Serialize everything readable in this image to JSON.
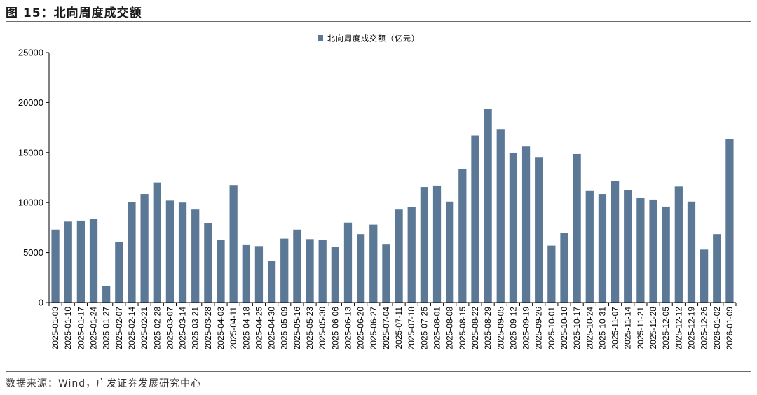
{
  "figure": {
    "title": "图 15：北向周度成交额",
    "source": "数据来源：Wind，广发证券发展研究中心"
  },
  "chart_data": {
    "type": "bar",
    "title": "",
    "xlabel": "",
    "ylabel": "",
    "ylim": [
      0,
      25000
    ],
    "yticks": [
      0,
      5000,
      10000,
      15000,
      20000,
      25000
    ],
    "legend_position": "top-center",
    "grid": false,
    "bar_color": "#5b7896",
    "categories": [
      "2025-01-03",
      "2025-01-10",
      "2025-01-17",
      "2025-01-24",
      "2025-01-27",
      "2025-02-07",
      "2025-02-14",
      "2025-02-21",
      "2025-02-28",
      "2025-03-07",
      "2025-03-14",
      "2025-03-21",
      "2025-03-28",
      "2025-04-03",
      "2025-04-11",
      "2025-04-18",
      "2025-04-25",
      "2025-04-30",
      "2025-05-09",
      "2025-05-16",
      "2025-05-23",
      "2025-05-30",
      "2025-06-06",
      "2025-06-13",
      "2025-06-20",
      "2025-06-27",
      "2025-07-04",
      "2025-07-11",
      "2025-07-18",
      "2025-07-25",
      "2025-08-01",
      "2025-08-08",
      "2025-08-15",
      "2025-08-22",
      "2025-08-29",
      "2025-09-05",
      "2025-09-12",
      "2025-09-19",
      "2025-09-26",
      "2025-10-01",
      "2025-10-10",
      "2025-10-17",
      "2025-10-24",
      "2025-10-31",
      "2025-11-07",
      "2025-11-14",
      "2025-11-21",
      "2025-11-28",
      "2025-12-05",
      "2025-12-12",
      "2025-12-19",
      "2025-12-26",
      "2026-01-02",
      "2026-01-09"
    ],
    "series": [
      {
        "name": "北向周度成交额（亿元）",
        "values": [
          7300,
          8100,
          8200,
          8350,
          1650,
          6050,
          10050,
          10850,
          12000,
          10200,
          10000,
          9300,
          7950,
          6250,
          11750,
          5750,
          5650,
          4200,
          6400,
          7300,
          6350,
          6250,
          5600,
          8000,
          6850,
          7800,
          5800,
          9300,
          9550,
          11550,
          11700,
          10100,
          13350,
          16700,
          19350,
          17350,
          14950,
          15600,
          14550,
          5700,
          6950,
          14850,
          11150,
          10850,
          12150,
          11250,
          10450,
          10300,
          9600,
          11600,
          10100,
          5300,
          6850,
          16350
        ]
      }
    ]
  }
}
